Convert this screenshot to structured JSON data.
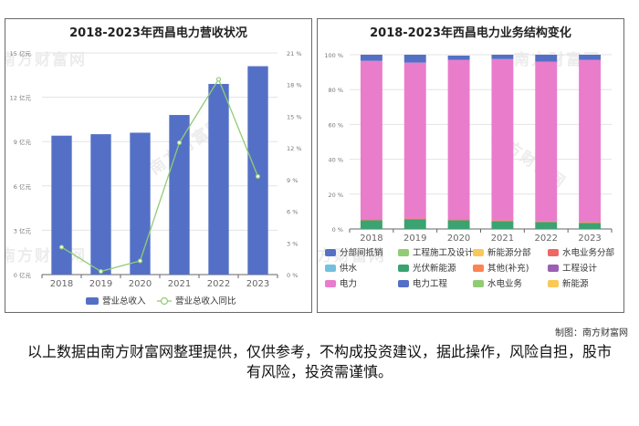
{
  "watermark_text": "南方财富网",
  "credit": "制图：南方财富网",
  "disclaimer": "以上数据由南方财富网整理提供，仅供参考，不构成投资建议，据此操作，风险自担，股市有风险，投资需谨慎。",
  "chart_data": [
    {
      "type": "bar",
      "title": "2018-2023年西昌电力营收状况",
      "categories": [
        "2018",
        "2019",
        "2020",
        "2021",
        "2022",
        "2023"
      ],
      "y_left": {
        "ticks": [
          "0 亿元",
          "3 亿元",
          "6 亿元",
          "9 亿元",
          "12 亿元",
          "15 亿元"
        ],
        "lim": [
          0,
          15
        ]
      },
      "y_right": {
        "ticks": [
          "0 %",
          "3 %",
          "6 %",
          "9 %",
          "12 %",
          "15 %",
          "18 %",
          "21 %"
        ],
        "lim": [
          0,
          21
        ]
      },
      "series": [
        {
          "name": "营业总收入",
          "kind": "bar",
          "axis": "left",
          "color": "#5470c6",
          "values": [
            9.4,
            9.5,
            9.6,
            10.8,
            12.9,
            14.1
          ]
        },
        {
          "name": "营业总收入同比",
          "kind": "line",
          "axis": "right",
          "color": "#91cc75",
          "values": [
            2.6,
            0.3,
            1.3,
            12.5,
            18.5,
            9.3
          ]
        }
      ],
      "grid": true,
      "legend": "bottom"
    },
    {
      "type": "bar",
      "stacked": true,
      "title": "2018-2023年西昌电力业务结构变化",
      "categories": [
        "2018",
        "2019",
        "2020",
        "2021",
        "2022",
        "2023"
      ],
      "y_ticks": [
        "0 %",
        "20 %",
        "40 %",
        "60 %",
        "80 %",
        "100 %"
      ],
      "ylim": [
        0,
        100
      ],
      "series": [
        {
          "name": "分部间抵销",
          "color": "#5470c6",
          "values": [
            0,
            0,
            0,
            0,
            0,
            0
          ]
        },
        {
          "name": "工程施工及设计",
          "color": "#91cc75",
          "values": [
            0,
            0,
            0,
            0,
            0,
            0
          ]
        },
        {
          "name": "新能源分部",
          "color": "#fac858",
          "values": [
            0,
            0,
            0,
            0,
            0,
            0
          ]
        },
        {
          "name": "水电业务分部",
          "color": "#ee6666",
          "values": [
            0,
            0,
            0,
            0,
            0,
            0
          ]
        },
        {
          "name": "供水",
          "color": "#73c0de",
          "values": [
            0,
            0,
            0,
            0,
            0,
            0
          ]
        },
        {
          "name": "光伏新能源",
          "color": "#3ba272",
          "values": [
            5,
            5.5,
            5,
            4.5,
            4,
            3.5
          ]
        },
        {
          "name": "其他(补充)",
          "color": "#fc8452",
          "values": [
            0.5,
            0.5,
            0.5,
            0.5,
            0.5,
            0.5
          ]
        },
        {
          "name": "工程设计",
          "color": "#9a60b4",
          "values": [
            0,
            0,
            0,
            0,
            0,
            0
          ]
        },
        {
          "name": "电力",
          "color": "#ea7ccc",
          "values": [
            91,
            89.5,
            91.5,
            92.5,
            91.5,
            93
          ]
        },
        {
          "name": "电力工程",
          "color": "#5470c6",
          "values": [
            3.5,
            4.5,
            2.5,
            2.5,
            4,
            3
          ]
        },
        {
          "name": "水电业务",
          "color": "#91cc75",
          "values": [
            0,
            0,
            0,
            0,
            0,
            0
          ]
        },
        {
          "name": "新能源",
          "color": "#fac858",
          "values": [
            0,
            0,
            0,
            0,
            0,
            0
          ]
        }
      ],
      "grid": true,
      "legend": "bottom"
    }
  ]
}
